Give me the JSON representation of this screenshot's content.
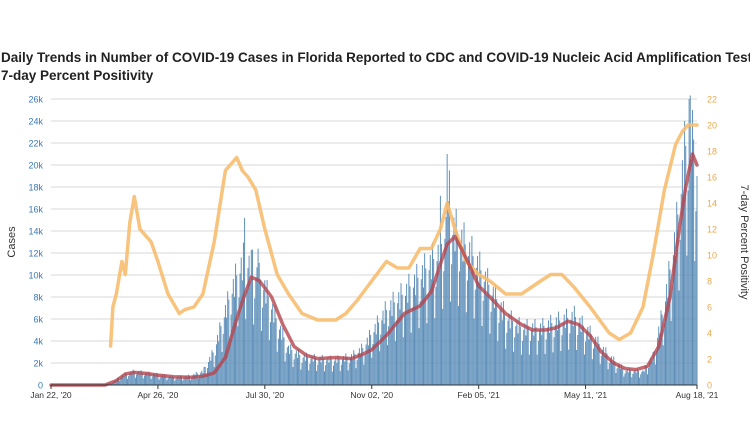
{
  "chart_data": {
    "type": "bar",
    "title_lines": [
      "Daily Trends in Number of COVID-19 Cases in Florida Reported to CDC and COVID-19 Nucleic Acid Amplification Tests (NAAT)",
      "7-day Percent Positivity"
    ],
    "ylabel": "Cases",
    "y2label": "7-day Percent Positivity",
    "ylim": [
      0,
      26000
    ],
    "y2lim": [
      0,
      22
    ],
    "y_ticks": [
      0,
      2000,
      4000,
      6000,
      8000,
      10000,
      12000,
      14000,
      16000,
      18000,
      20000,
      22000,
      24000,
      26000
    ],
    "y_tick_labels": [
      "0",
      "2k",
      "4k",
      "6k",
      "8k",
      "10k",
      "12k",
      "14k",
      "16k",
      "18k",
      "20k",
      "22k",
      "24k",
      "26k"
    ],
    "y2_ticks": [
      0,
      2,
      4,
      6,
      8,
      10,
      12,
      14,
      16,
      18,
      20,
      22
    ],
    "y2_tick_labels": [
      "0",
      "2",
      "4",
      "6",
      "8",
      "10",
      "12",
      "14",
      "16",
      "18",
      "20",
      "22"
    ],
    "x_start": "2020-01-22",
    "x_end": "2021-08-18",
    "x_ticks": [
      "2020-01-22",
      "2020-04-26",
      "2020-07-30",
      "2020-11-02",
      "2021-02-05",
      "2021-05-11",
      "2021-08-18"
    ],
    "x_tick_labels": [
      "Jan 22, '20",
      "Apr 26, '20",
      "Jul 30, '20",
      "Nov 02, '20",
      "Feb 05, '21",
      "May 11, '21",
      "Aug 18, '21"
    ],
    "grid": true,
    "colors": {
      "cases": "#5b8db8",
      "average": "#b5454d",
      "positivity": "#f7bd6e",
      "grid": "#cccccc"
    },
    "series": [
      {
        "kind": "daily cases (bars)",
        "x": [
          "2020-01-22",
          "2020-03-01",
          "2020-03-15",
          "2020-03-25",
          "2020-04-05",
          "2020-04-20",
          "2020-05-10",
          "2020-05-25",
          "2020-06-05",
          "2020-06-15",
          "2020-06-25",
          "2020-07-05",
          "2020-07-12",
          "2020-07-20",
          "2020-07-30",
          "2020-08-10",
          "2020-08-20",
          "2020-09-01",
          "2020-09-15",
          "2020-10-01",
          "2020-10-15",
          "2020-10-25",
          "2020-11-02",
          "2020-11-15",
          "2020-12-01",
          "2020-12-15",
          "2021-01-01",
          "2021-01-08",
          "2021-01-15",
          "2021-02-01",
          "2021-02-15",
          "2021-03-01",
          "2021-03-15",
          "2021-04-01",
          "2021-04-15",
          "2021-05-01",
          "2021-05-15",
          "2021-06-01",
          "2021-06-15",
          "2021-07-01",
          "2021-07-10",
          "2021-07-20",
          "2021-07-30",
          "2021-08-07",
          "2021-08-12",
          "2021-08-18"
        ],
        "values": [
          0,
          0,
          150,
          800,
          1200,
          1000,
          700,
          800,
          1200,
          3000,
          6500,
          9500,
          11000,
          10000,
          8500,
          5500,
          3200,
          2500,
          2300,
          2200,
          2500,
          3200,
          4500,
          6500,
          8000,
          9500,
          11500,
          14000,
          13500,
          11000,
          8500,
          6000,
          5000,
          5000,
          5500,
          6000,
          4500,
          2500,
          1300,
          1200,
          2500,
          7000,
          13000,
          20000,
          23500,
          19000
        ],
        "spikes": [
          {
            "x": "2020-07-12",
            "value": 15200
          },
          {
            "x": "2020-07-19",
            "value": 12300
          },
          {
            "x": "2020-07-24",
            "value": 12400
          },
          {
            "x": "2021-01-02",
            "value": 17200
          },
          {
            "x": "2021-01-08",
            "value": 21000
          },
          {
            "x": "2021-01-10",
            "value": 19500
          },
          {
            "x": "2021-08-07",
            "value": 24000
          },
          {
            "x": "2021-08-11",
            "value": 26000
          },
          {
            "x": "2021-08-14",
            "value": 25000
          }
        ]
      },
      {
        "kind": "7-day average of cases (line)",
        "x": [
          "2020-01-22",
          "2020-03-10",
          "2020-03-20",
          "2020-03-28",
          "2020-04-05",
          "2020-04-15",
          "2020-04-26",
          "2020-05-10",
          "2020-05-25",
          "2020-06-05",
          "2020-06-15",
          "2020-06-25",
          "2020-07-05",
          "2020-07-12",
          "2020-07-18",
          "2020-07-25",
          "2020-08-05",
          "2020-08-15",
          "2020-08-25",
          "2020-09-05",
          "2020-09-15",
          "2020-10-01",
          "2020-10-15",
          "2020-10-25",
          "2020-11-02",
          "2020-11-15",
          "2020-12-01",
          "2020-12-15",
          "2020-12-25",
          "2021-01-02",
          "2021-01-08",
          "2021-01-15",
          "2021-01-25",
          "2021-02-05",
          "2021-02-15",
          "2021-03-01",
          "2021-03-15",
          "2021-03-25",
          "2021-04-05",
          "2021-04-15",
          "2021-04-25",
          "2021-05-05",
          "2021-05-15",
          "2021-05-25",
          "2021-06-05",
          "2021-06-15",
          "2021-06-25",
          "2021-07-05",
          "2021-07-15",
          "2021-07-25",
          "2021-08-02",
          "2021-08-08",
          "2021-08-14",
          "2021-08-18"
        ],
        "values": [
          0,
          0,
          400,
          1000,
          1150,
          1050,
          900,
          750,
          700,
          800,
          1100,
          2500,
          6000,
          8200,
          9800,
          9500,
          8000,
          5500,
          3500,
          2700,
          2400,
          2500,
          2400,
          2800,
          3200,
          4500,
          6500,
          7200,
          8500,
          11000,
          12800,
          13500,
          11500,
          9000,
          8000,
          6500,
          5500,
          5000,
          5000,
          5200,
          5800,
          5500,
          4500,
          3000,
          2000,
          1500,
          1400,
          1700,
          3500,
          8000,
          14000,
          18000,
          21000,
          20000
        ]
      },
      {
        "kind": "7-day percent positivity (line, right axis)",
        "x": [
          "2020-03-15",
          "2020-03-17",
          "2020-03-20",
          "2020-03-25",
          "2020-03-28",
          "2020-04-01",
          "2020-04-05",
          "2020-04-10",
          "2020-04-15",
          "2020-04-20",
          "2020-04-26",
          "2020-05-05",
          "2020-05-15",
          "2020-05-20",
          "2020-05-28",
          "2020-06-05",
          "2020-06-15",
          "2020-06-25",
          "2020-07-05",
          "2020-07-10",
          "2020-07-15",
          "2020-07-22",
          "2020-07-30",
          "2020-08-10",
          "2020-08-20",
          "2020-09-01",
          "2020-09-15",
          "2020-10-01",
          "2020-10-10",
          "2020-10-20",
          "2020-11-02",
          "2020-11-15",
          "2020-11-25",
          "2020-12-05",
          "2020-12-15",
          "2020-12-25",
          "2021-01-02",
          "2021-01-08",
          "2021-01-15",
          "2021-01-25",
          "2021-02-05",
          "2021-02-15",
          "2021-03-01",
          "2021-03-15",
          "2021-04-01",
          "2021-04-10",
          "2021-04-20",
          "2021-05-01",
          "2021-05-15",
          "2021-06-01",
          "2021-06-10",
          "2021-06-20",
          "2021-07-01",
          "2021-07-10",
          "2021-07-20",
          "2021-07-30",
          "2021-08-05",
          "2021-08-10",
          "2021-08-18"
        ],
        "values": [
          3.0,
          6.0,
          7.0,
          9.5,
          8.5,
          12.5,
          14.5,
          12.0,
          11.5,
          11.0,
          9.5,
          7.0,
          5.5,
          5.8,
          6.0,
          7.0,
          11.0,
          16.5,
          17.5,
          16.5,
          16.0,
          15.0,
          12.0,
          8.5,
          7.0,
          5.5,
          5.0,
          5.0,
          5.5,
          6.5,
          8.0,
          9.5,
          9.0,
          9.0,
          10.5,
          10.5,
          12.0,
          14.0,
          12.0,
          9.5,
          8.5,
          8.0,
          7.0,
          7.0,
          8.0,
          8.5,
          8.5,
          7.5,
          6.0,
          4.0,
          3.5,
          4.0,
          6.0,
          10.0,
          15.0,
          18.5,
          19.5,
          20.0,
          20.0
        ]
      }
    ]
  }
}
